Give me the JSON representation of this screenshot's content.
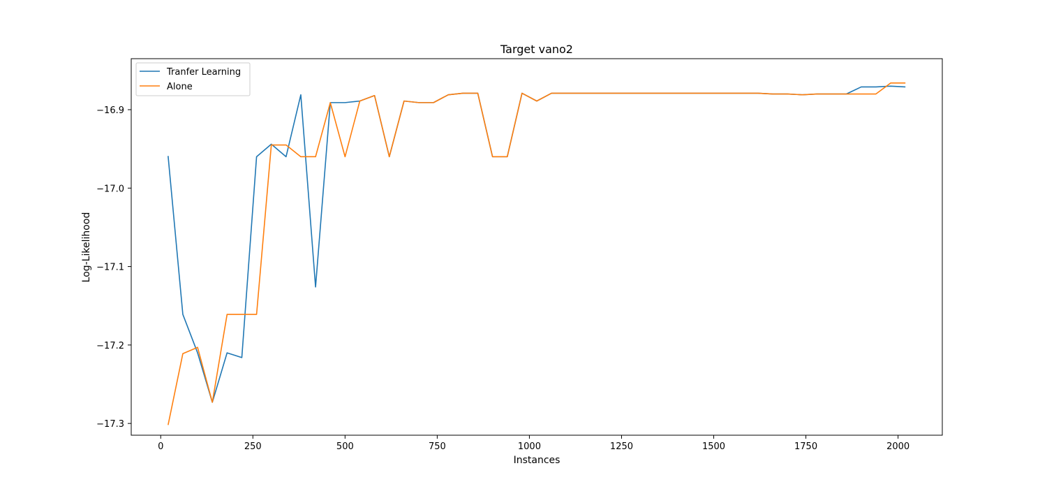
{
  "chart_data": {
    "type": "line",
    "title": "Target vano2",
    "xlabel": "Instances",
    "ylabel": "Log-Likelihood",
    "xlim": [
      -80,
      2120
    ],
    "ylim": [
      -17.315,
      -16.835
    ],
    "xticks": [
      0,
      250,
      500,
      750,
      1000,
      1250,
      1500,
      1750,
      2000
    ],
    "yticks": [
      -17.3,
      -17.2,
      -17.1,
      -17.0,
      -16.9
    ],
    "xtick_labels": [
      "0",
      "250",
      "500",
      "750",
      "1000",
      "1250",
      "1500",
      "1750",
      "2000"
    ],
    "ytick_labels": [
      "−17.3",
      "−17.2",
      "−17.1",
      "−17.0",
      "−16.9"
    ],
    "legend_position": "top-left",
    "grid": false,
    "x": [
      20,
      60,
      100,
      140,
      180,
      220,
      260,
      300,
      340,
      380,
      420,
      460,
      500,
      540,
      580,
      620,
      660,
      700,
      740,
      780,
      820,
      860,
      900,
      940,
      980,
      1020,
      1060,
      1100,
      1140,
      1180,
      1220,
      1260,
      1300,
      1340,
      1380,
      1420,
      1460,
      1500,
      1540,
      1580,
      1620,
      1660,
      1700,
      1740,
      1780,
      1820,
      1860,
      1900,
      1940,
      1980,
      2020
    ],
    "series": [
      {
        "name": "Tranfer Learning",
        "color": "#1f77b4",
        "values": [
          -16.959,
          -17.161,
          -17.21,
          -17.273,
          -17.21,
          -17.216,
          -16.96,
          -16.944,
          -16.96,
          -16.881,
          -17.126,
          -16.891,
          -16.891,
          -16.889,
          -16.882,
          -16.96,
          -16.889,
          -16.891,
          -16.891,
          -16.881,
          -16.879,
          -16.879,
          -16.96,
          -16.96,
          -16.879,
          -16.889,
          -16.879,
          -16.879,
          -16.879,
          -16.879,
          -16.879,
          -16.879,
          -16.879,
          -16.879,
          -16.879,
          -16.879,
          -16.879,
          -16.879,
          -16.879,
          -16.879,
          -16.879,
          -16.88,
          -16.88,
          -16.881,
          -16.88,
          -16.88,
          -16.88,
          -16.871,
          -16.871,
          -16.87,
          -16.871
        ]
      },
      {
        "name": "Alone",
        "color": "#ff7f0e",
        "values": [
          -17.302,
          -17.211,
          -17.203,
          -17.273,
          -17.161,
          -17.161,
          -17.161,
          -16.945,
          -16.945,
          -16.96,
          -16.96,
          -16.891,
          -16.96,
          -16.889,
          -16.882,
          -16.96,
          -16.889,
          -16.891,
          -16.891,
          -16.881,
          -16.879,
          -16.879,
          -16.96,
          -16.96,
          -16.879,
          -16.889,
          -16.879,
          -16.879,
          -16.879,
          -16.879,
          -16.879,
          -16.879,
          -16.879,
          -16.879,
          -16.879,
          -16.879,
          -16.879,
          -16.879,
          -16.879,
          -16.879,
          -16.879,
          -16.88,
          -16.88,
          -16.881,
          -16.88,
          -16.88,
          -16.88,
          -16.88,
          -16.88,
          -16.866,
          -16.866
        ]
      }
    ]
  }
}
